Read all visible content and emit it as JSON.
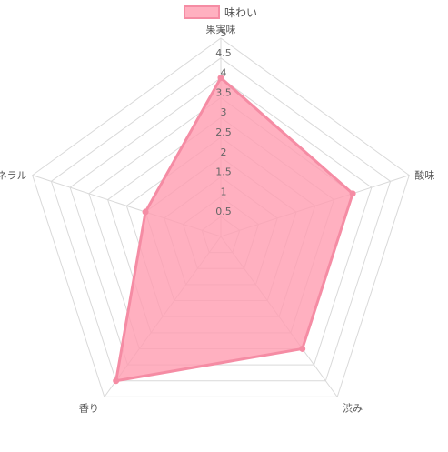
{
  "chart_data": {
    "type": "radar",
    "labels": [
      "果実味",
      "酸味",
      "渋み",
      "香り",
      "ミネラル"
    ],
    "series": [
      {
        "name": "味わい",
        "values": [
          4,
          3.5,
          3.5,
          4.5,
          2
        ],
        "border_color": "#f58ca4",
        "fill_color": "#ff9cb0",
        "fill_opacity": 0.8
      }
    ],
    "r_min": 0,
    "r_max": 5,
    "r_step": 0.5,
    "tick_labels": [
      "0.5",
      "1",
      "1.5",
      "2",
      "2.5",
      "3",
      "3.5",
      "4",
      "4.5",
      "5"
    ],
    "legend_position": "top",
    "grid": true,
    "grid_color": "#d9d9d9"
  }
}
